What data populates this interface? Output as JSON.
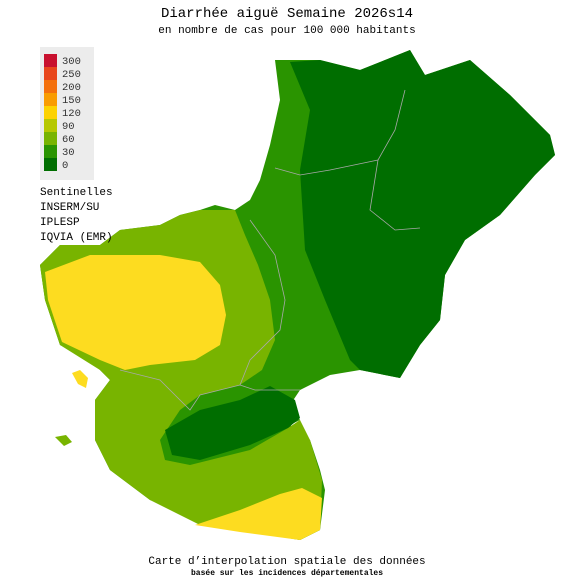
{
  "title": "Diarrhée aiguë Semaine 2026s14",
  "subtitle": "en nombre de cas pour 100 000 habitants",
  "legend": {
    "items": [
      {
        "value": 300,
        "color": "#c8102e"
      },
      {
        "value": 250,
        "color": "#e8461c"
      },
      {
        "value": 200,
        "color": "#f4700c"
      },
      {
        "value": 150,
        "color": "#f99c00"
      },
      {
        "value": 120,
        "color": "#fdd200"
      },
      {
        "value": 90,
        "color": "#b6c800"
      },
      {
        "value": 60,
        "color": "#78b400"
      },
      {
        "value": 30,
        "color": "#2a9400"
      },
      {
        "value": 0,
        "color": "#006e00"
      }
    ]
  },
  "sources": [
    "Sentinelles",
    "INSERM/SU",
    "IPLESP",
    "IQVIA (EMR)"
  ],
  "footer": {
    "line1": "Carte d’interpolation spatiale des données",
    "line2": "basée sur les incidences départementales"
  }
}
